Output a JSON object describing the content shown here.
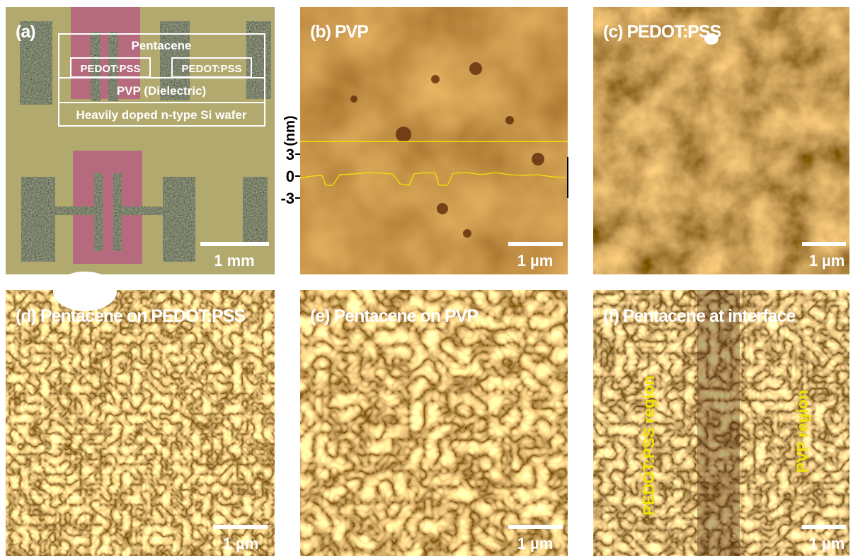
{
  "panels": [
    {
      "label": "(a)",
      "layers": [
        "Pentacene",
        "PEDOT:PSS",
        "PEDOT:PSS",
        "PVP (Dielectric)",
        "Heavily doped n-type Si wafer"
      ],
      "scale_bar": "1 mm"
    },
    {
      "label": "(b) PVP",
      "profile": {
        "axis_label": "(nm)",
        "yticks": [
          3,
          0,
          -3
        ]
      },
      "scale_bar": "1 µm"
    },
    {
      "label": "(c) PEDOT:PSS",
      "scale_bar": "1 µm"
    },
    {
      "label": "(d) Pentacene on PEDOT:PSS",
      "scale_bar": "1 µm"
    },
    {
      "label": "(e) Pentacene on PVP",
      "scale_bar": "1 µm"
    },
    {
      "label": "(f) Pentacene at interface",
      "annotations": [
        "PEDOT:PSS region",
        "PVP region"
      ],
      "scale_bar": "1 µm"
    }
  ]
}
